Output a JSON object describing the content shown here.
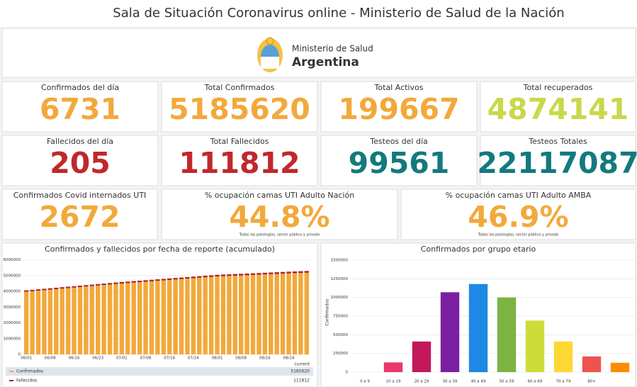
{
  "header": {
    "title": "Sala de Situación Coronavirus online - Ministerio de Salud de la Nación"
  },
  "logo": {
    "line1": "Ministerio de Salud",
    "line2": "Argentina"
  },
  "stats": [
    {
      "label": "Confirmados del día",
      "value": "6731",
      "color": "#f2a93b"
    },
    {
      "label": "Total Confirmados",
      "value": "5185620",
      "color": "#f2a93b"
    },
    {
      "label": "Total Activos",
      "value": "199667",
      "color": "#f2a93b"
    },
    {
      "label": "Total recuperados",
      "value": "4874141",
      "color": "#c9d84b"
    },
    {
      "label": "Fallecidos del día",
      "value": "205",
      "color": "#c0282d"
    },
    {
      "label": "Total Fallecidos",
      "value": "111812",
      "color": "#c0282d"
    },
    {
      "label": "Testeos del día",
      "value": "99561",
      "color": "#127a7e"
    },
    {
      "label": "Testeos Totales",
      "value": "22117087",
      "color": "#127a7e"
    },
    {
      "label": "Confirmados Covid internados UTI",
      "value": "2672",
      "color": "#f2a93b"
    },
    {
      "label": "% ocupación camas UTI Adulto Nación",
      "value": "44.8%",
      "color": "#f2a93b",
      "note": "Todas las patologías, sector público y privado"
    },
    {
      "label": "% ocupación camas UTI Adulto AMBA",
      "value": "46.9%",
      "color": "#f2a93b",
      "note": "Todas las patologías, sector público y privado"
    }
  ],
  "chart_data": [
    {
      "type": "bar",
      "stacked": true,
      "title": "Confirmados y fallecidos por fecha de reporte (acumulado)",
      "categories": [
        "06/01",
        null,
        null,
        null,
        "06/08",
        null,
        null,
        null,
        "06/16",
        null,
        null,
        null,
        "06/23",
        null,
        null,
        null,
        "07/01",
        null,
        null,
        null,
        "07/08",
        null,
        null,
        null,
        "07/16",
        null,
        null,
        null,
        "07/24",
        null,
        null,
        null,
        "08/01",
        null,
        null,
        null,
        "08/08",
        null,
        null,
        null,
        "08/16",
        null,
        null,
        null,
        "08/24",
        null,
        null,
        null
      ],
      "series": [
        {
          "name": "Confirmados",
          "color": "#f2a93b",
          "values": [
            3980000,
            4012000,
            4045000,
            4077000,
            4110000,
            4142000,
            4175000,
            4207000,
            4240000,
            4272000,
            4305000,
            4337000,
            4370000,
            4402000,
            4435000,
            4467000,
            4500000,
            4528000,
            4556000,
            4584000,
            4612000,
            4640000,
            4668000,
            4696000,
            4724000,
            4752000,
            4780000,
            4808000,
            4836000,
            4864000,
            4892000,
            4920000,
            4948000,
            4964000,
            4980000,
            4996000,
            5012000,
            5028000,
            5044000,
            5060000,
            5076000,
            5092000,
            5108000,
            5124000,
            5140000,
            5156000,
            5171000,
            5185620
          ]
        },
        {
          "name": "Fallecidos",
          "color": "#a8262b",
          "values": [
            88000,
            88500,
            89000,
            89500,
            90000,
            90500,
            91000,
            91500,
            92000,
            92500,
            93000,
            93500,
            94000,
            94500,
            95000,
            95500,
            96000,
            96500,
            97000,
            97500,
            98000,
            98500,
            99000,
            99500,
            100000,
            100500,
            101000,
            101500,
            102000,
            102500,
            103000,
            103500,
            104000,
            104500,
            105000,
            105500,
            106000,
            106500,
            107000,
            107500,
            108000,
            108500,
            109000,
            109500,
            110000,
            110500,
            111000,
            111812
          ]
        }
      ],
      "legend_header": "current",
      "ylim": [
        0,
        6300000
      ],
      "yticks": [
        0,
        1000000,
        2000000,
        3000000,
        4000000,
        5000000,
        6000000
      ],
      "grid": true
    },
    {
      "type": "bar",
      "title": "Confirmados por grupo etario",
      "y_label": "Confirmados",
      "categories": [
        "0 a 9",
        "10 a 19",
        "20 a 29",
        "30 a 39",
        "40 a 49",
        "50 a 59",
        "60 a 69",
        "70 a 79",
        "80+",
        null
      ],
      "values": [
        0,
        130000,
        410000,
        1070000,
        1180000,
        1000000,
        690000,
        410000,
        210000,
        125000
      ],
      "colors": [
        "#e8386e",
        "#e8386e",
        "#c2185b",
        "#7b1fa2",
        "#1e88e5",
        "#7cb342",
        "#cddc39",
        "#fdd835",
        "#ef5350",
        "#fb8c00"
      ],
      "ylim": [
        0,
        1600000
      ],
      "yticks": [
        0,
        250000,
        500000,
        750000,
        1000000,
        1250000,
        1500000
      ],
      "grid": true
    }
  ]
}
